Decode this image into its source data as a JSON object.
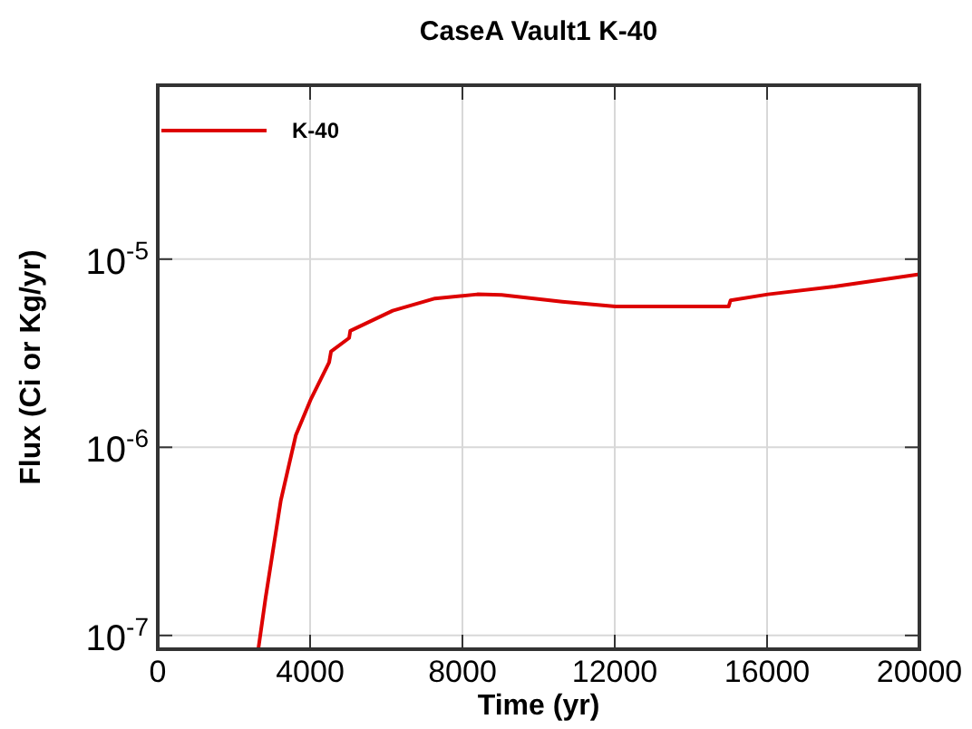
{
  "chart_data": {
    "type": "line",
    "title": "CaseA Vault1 K-40",
    "xlabel": "Time (yr)",
    "ylabel": "Flux (Ci or Kg/yr)",
    "log": "y",
    "grid": true,
    "legend": "top left",
    "xlim": [
      0,
      20000
    ],
    "xticks": [
      0,
      4000,
      8000,
      12000,
      16000,
      20000
    ],
    "ylim": [
      8.45e-08,
      8.4e-05
    ],
    "yticks": [
      {
        "value": 1e-07,
        "label": "10$^{-7}$"
      },
      {
        "value": 1e-06,
        "label": "10$^{-6}$"
      },
      {
        "value": 1e-05,
        "label": "10$^{-5}$"
      }
    ],
    "series": [
      {
        "name": "K-40",
        "color": "#dd0000",
        "x": [
          2640,
          2830,
          3230,
          3625,
          4025,
          4500,
          4550,
          5025,
          5055,
          6170,
          7280,
          8390,
          9030,
          10620,
          12020,
          14990,
          15040,
          16020,
          17770,
          20000
        ],
        "values": [
          8.45e-08,
          1.58e-07,
          5.2e-07,
          1.16e-06,
          1.81e-06,
          2.83e-06,
          3.23e-06,
          3.81e-06,
          4.16e-06,
          5.32e-06,
          6.18e-06,
          6.5e-06,
          6.45e-06,
          5.94e-06,
          5.6e-06,
          5.6e-06,
          6.04e-06,
          6.5e-06,
          7.16e-06,
          8.3e-06
        ]
      }
    ]
  }
}
